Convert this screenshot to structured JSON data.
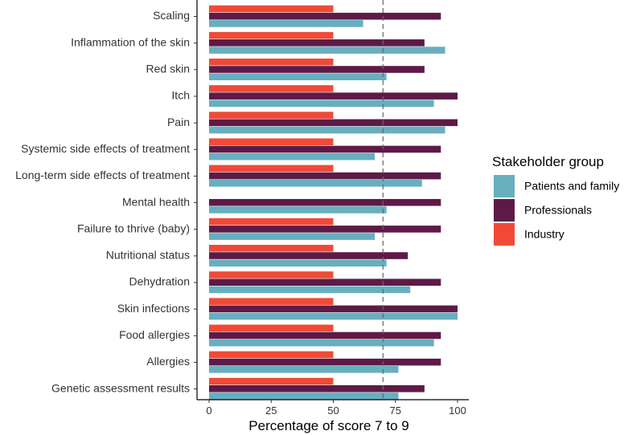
{
  "chart_data": {
    "type": "bar",
    "orientation": "horizontal",
    "xlabel": "Percentage of score 7 to 9",
    "ylabel": "",
    "xlim": [
      0,
      100
    ],
    "xticks": [
      0,
      25,
      50,
      75,
      100
    ],
    "reference_line": 70,
    "categories": [
      "Scaling",
      "Inflammation of the skin",
      "Red skin",
      "Itch",
      "Pain",
      "Systemic side effects of treatment",
      "Long-term side effects of treatment",
      "Mental health",
      "Failure to thrive (baby)",
      "Nutritional status",
      "Dehydration",
      "Skin infections",
      "Food allergies",
      "Allergies",
      "Genetic assessment results"
    ],
    "series": [
      {
        "name": "Industry",
        "color": "#F04A37",
        "values": [
          50,
          50,
          50,
          50,
          50,
          50,
          50,
          null,
          50,
          50,
          50,
          50,
          50,
          50,
          50
        ]
      },
      {
        "name": "Professionals",
        "color": "#5E1A47",
        "values": [
          93.3,
          86.7,
          86.7,
          100,
          100,
          93.3,
          93.3,
          93.3,
          93.3,
          80,
          93.3,
          100,
          93.3,
          93.3,
          86.7
        ]
      },
      {
        "name": "Patients and family",
        "color": "#67AFBF",
        "values": [
          62,
          95,
          71.4,
          90.5,
          95,
          66.7,
          85.7,
          71.4,
          66.7,
          71.4,
          81,
          100,
          90.5,
          76.2,
          76.2
        ]
      }
    ],
    "legend": {
      "title": "Stakeholder group",
      "position": "right",
      "entries": [
        {
          "label": "Patients and family",
          "color": "#67AFBF"
        },
        {
          "label": "Professionals",
          "color": "#5E1A47"
        },
        {
          "label": "Industry",
          "color": "#F04A37"
        }
      ]
    }
  }
}
